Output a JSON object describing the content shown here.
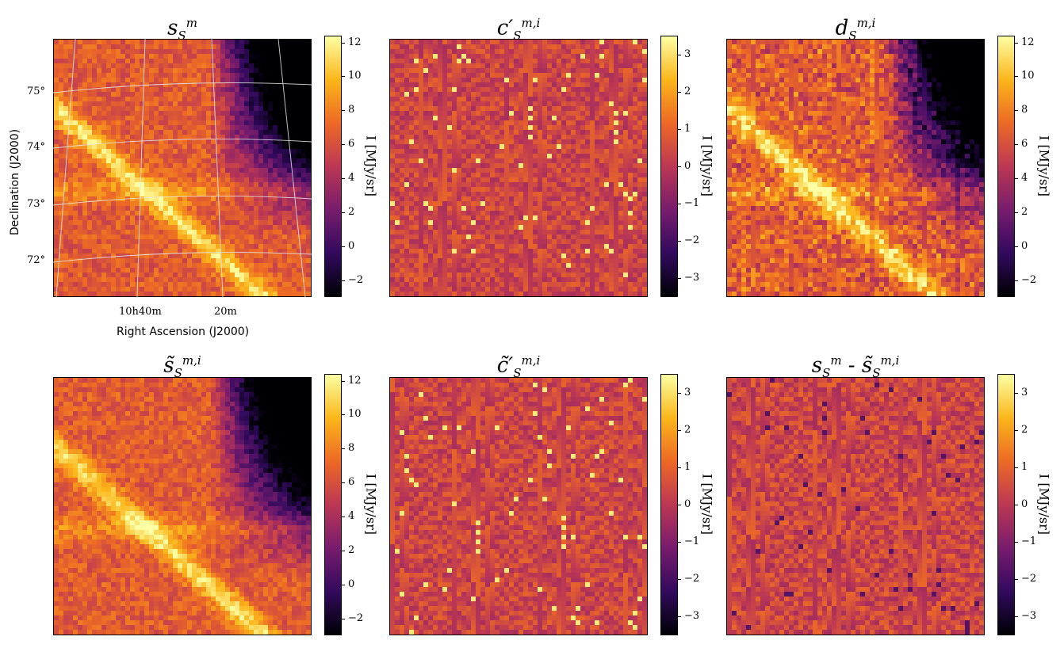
{
  "panels": [
    {
      "id": "p1",
      "title_main": "s",
      "title_sub": "S",
      "title_sup": "m",
      "style": "sky",
      "seed": 3
    },
    {
      "id": "p2",
      "title_main": "c′",
      "title_sub": "S",
      "title_sup": "m,i",
      "style": "noise",
      "seed": 7
    },
    {
      "id": "p3",
      "title_main": "d",
      "title_sub": "S",
      "title_sup": "m,i",
      "style": "skynoisy",
      "seed": 11
    },
    {
      "id": "p4",
      "title_main": "s̃",
      "title_sub": "S",
      "title_sup": "m,i",
      "style": "sky",
      "seed": 13
    },
    {
      "id": "p5",
      "title_main": "c̃′",
      "title_sub": "S",
      "title_sup": "m,i",
      "style": "noise",
      "seed": 17
    },
    {
      "id": "p6",
      "title_main": "s",
      "title_sub": "S",
      "title_sup": "m",
      "title_suffix": " - s̃",
      "title_suffix_sub": "S",
      "title_suffix_sup": "m,i",
      "style": "residual",
      "seed": 19
    }
  ],
  "colorbars": {
    "wide": {
      "ticks": [
        "12",
        "10",
        "8",
        "6",
        "4",
        "2",
        "0",
        "−2"
      ],
      "values": [
        12,
        10,
        8,
        6,
        4,
        2,
        0,
        -2
      ],
      "min": -3,
      "max": 12.4
    },
    "narrow": {
      "ticks": [
        "3",
        "2",
        "1",
        "0",
        "−1",
        "−2",
        "−3"
      ],
      "values": [
        3,
        2,
        1,
        0,
        -1,
        -2,
        -3
      ],
      "min": -3.5,
      "max": 3.5
    },
    "label": "I [MJy/sr]"
  },
  "axes": {
    "ylabel": "Declination (J2000)",
    "xlabel": "Right Ascension (J2000)",
    "dec_ticks": [
      "75°",
      "74°",
      "73°",
      "72°"
    ],
    "ra_ticks": [
      "10h40m",
      "20m"
    ]
  },
  "colormap": {
    "name": "inferno",
    "stops": [
      "#000004",
      "#320a5e",
      "#781c6d",
      "#bc3754",
      "#ed6925",
      "#fbb61a",
      "#fcffa4"
    ]
  }
}
